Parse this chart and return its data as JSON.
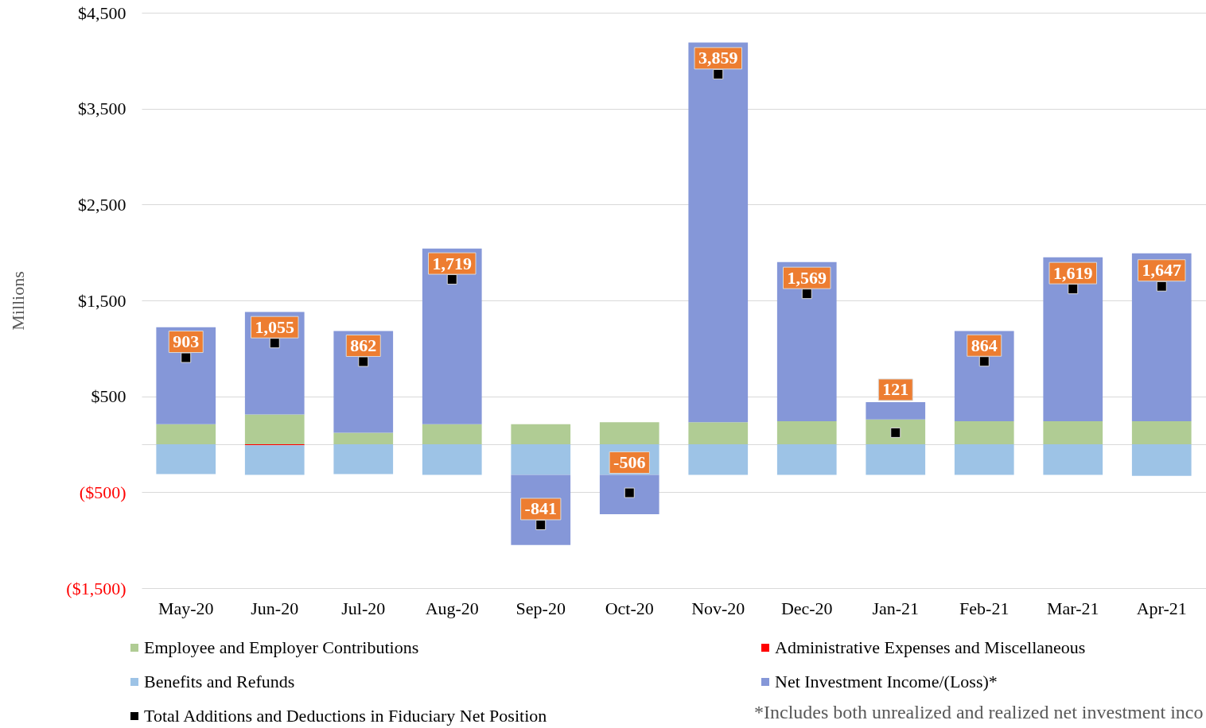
{
  "chart_data": {
    "type": "bar",
    "stacked": true,
    "ylabel": "Millions",
    "categories": [
      "May-20",
      "Jun-20",
      "Jul-20",
      "Aug-20",
      "Sep-20",
      "Oct-20",
      "Nov-20",
      "Dec-20",
      "Jan-21",
      "Feb-21",
      "Mar-21",
      "Apr-21"
    ],
    "series": [
      {
        "name": "Employee and Employer Contributions",
        "color": "#b0cc94",
        "values": [
          210,
          310,
          120,
          210,
          210,
          230,
          230,
          240,
          260,
          240,
          240,
          240
        ]
      },
      {
        "name": "Administrative Expenses and Miscellaneous",
        "color": "#ff0000",
        "values": [
          null,
          -10,
          null,
          null,
          null,
          null,
          null,
          null,
          null,
          null,
          null,
          null
        ]
      },
      {
        "name": "Benefits and Refunds",
        "color": "#9dc3e6",
        "values": [
          -310,
          -310,
          -310,
          -320,
          -320,
          -320,
          -320,
          -320,
          -320,
          -320,
          -320,
          -330
        ]
      },
      {
        "name": "Net Investment Income/(Loss)*",
        "color": "#8597d8",
        "values": [
          1010,
          1070,
          1060,
          1830,
          -730,
          -410,
          3960,
          1660,
          180,
          940,
          1710,
          1750
        ]
      },
      {
        "name": "Total Additions and Deductions in Fiduciary Net Position",
        "color": "#000000",
        "type": "scatter",
        "marker": "square",
        "values": [
          903,
          1055,
          862,
          1719,
          -841,
          -506,
          3859,
          1569,
          121,
          864,
          1619,
          1647
        ],
        "value_labels": [
          "903",
          "1,055",
          "862",
          "1,719",
          "-841",
          "-506",
          "3,859",
          "1,569",
          "121",
          "864",
          "1,619",
          "1,647"
        ]
      }
    ],
    "ylim": [
      -1500,
      4500
    ],
    "yticks": [
      {
        "value": -1500,
        "label": "($1,500)"
      },
      {
        "value": -500,
        "label": "($500)"
      },
      {
        "value": 0,
        "label": null
      },
      {
        "value": 500,
        "label": "$500"
      },
      {
        "value": 1500,
        "label": "$1,500"
      },
      {
        "value": 2500,
        "label": "$2,500"
      },
      {
        "value": 3500,
        "label": "$3,500"
      },
      {
        "value": 4500,
        "label": "$4,500"
      }
    ],
    "grid": "y",
    "legend": "bottom",
    "annotations": [
      "*Includes both unrealized and realized net investment inco"
    ]
  }
}
